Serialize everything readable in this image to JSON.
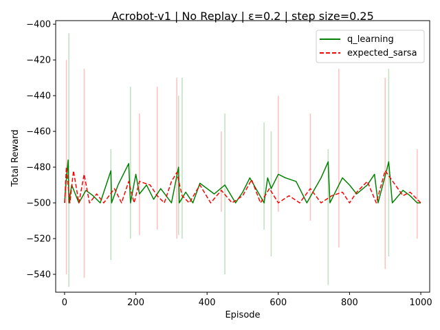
{
  "chart_data": {
    "type": "line",
    "title": "Acrobot-v1 | No Replay | ε=0.2 | step size=0.25",
    "xlabel": "Episode",
    "ylabel": "Total Reward",
    "xlim": [
      -25,
      1025
    ],
    "ylim": [
      -550,
      -398
    ],
    "xticks": [
      0,
      200,
      400,
      600,
      800,
      1000
    ],
    "yticks": [
      -540,
      -520,
      -500,
      -480,
      -460,
      -440,
      -420,
      -400
    ],
    "grid": false,
    "legend_position": "top-right",
    "series": [
      {
        "name": "q_learning",
        "color": "#008000",
        "style": "solid",
        "x": [
          0,
          3,
          10,
          12,
          20,
          30,
          40,
          60,
          80,
          100,
          130,
          132,
          150,
          180,
          185,
          200,
          210,
          230,
          250,
          270,
          300,
          320,
          322,
          340,
          360,
          380,
          420,
          450,
          480,
          500,
          520,
          560,
          570,
          580,
          600,
          620,
          650,
          680,
          700,
          720,
          740,
          745,
          780,
          800,
          820,
          850,
          870,
          880,
          900,
          910,
          920,
          950,
          970,
          990,
          1000
        ],
        "values": [
          -500,
          -491,
          -476,
          -500,
          -490,
          -495,
          -500,
          -493,
          -496,
          -500,
          -482,
          -500,
          -490,
          -478,
          -500,
          -484,
          -495,
          -490,
          -498,
          -492,
          -500,
          -480,
          -500,
          -494,
          -500,
          -489,
          -495,
          -490,
          -500,
          -494,
          -486,
          -500,
          -486,
          -492,
          -484,
          -486,
          -488,
          -500,
          -493,
          -486,
          -477,
          -500,
          -486,
          -490,
          -495,
          -490,
          -484,
          -500,
          -485,
          -477,
          -500,
          -493,
          -496,
          -500,
          -500
        ],
        "band_spikes": [
          {
            "x": 12,
            "y": [
              -547,
              -405
            ]
          },
          {
            "x": 130,
            "y": [
              -532,
              -470
            ]
          },
          {
            "x": 185,
            "y": [
              -520,
              -435
            ]
          },
          {
            "x": 320,
            "y": [
              -518,
              -440
            ]
          },
          {
            "x": 330,
            "y": [
              -520,
              -430
            ]
          },
          {
            "x": 450,
            "y": [
              -540,
              -450
            ]
          },
          {
            "x": 560,
            "y": [
              -515,
              -455
            ]
          },
          {
            "x": 580,
            "y": [
              -530,
              -460
            ]
          },
          {
            "x": 740,
            "y": [
              -546,
              -470
            ]
          },
          {
            "x": 910,
            "y": [
              -530,
              -425
            ]
          }
        ]
      },
      {
        "name": "expected_sarsa",
        "color": "#ff0000",
        "style": "dashed",
        "x": [
          0,
          5,
          15,
          25,
          40,
          55,
          70,
          90,
          110,
          140,
          160,
          180,
          195,
          210,
          240,
          260,
          280,
          300,
          315,
          330,
          350,
          380,
          410,
          440,
          470,
          500,
          525,
          550,
          575,
          600,
          630,
          660,
          690,
          720,
          750,
          780,
          800,
          820,
          850,
          875,
          900,
          925,
          950,
          970,
          1000
        ],
        "values": [
          -500,
          -480,
          -500,
          -482,
          -500,
          -484,
          -500,
          -495,
          -500,
          -492,
          -500,
          -488,
          -500,
          -488,
          -490,
          -496,
          -500,
          -488,
          -483,
          -496,
          -500,
          -490,
          -500,
          -493,
          -500,
          -496,
          -487,
          -500,
          -492,
          -500,
          -496,
          -500,
          -492,
          -500,
          -496,
          -494,
          -500,
          -494,
          -488,
          -500,
          -482,
          -489,
          -496,
          -494,
          -500
        ],
        "band_spikes": [
          {
            "x": 5,
            "y": [
              -540,
              -420
            ]
          },
          {
            "x": 55,
            "y": [
              -542,
              -425
            ]
          },
          {
            "x": 210,
            "y": [
              -518,
              -450
            ]
          },
          {
            "x": 260,
            "y": [
              -515,
              -435
            ]
          },
          {
            "x": 315,
            "y": [
              -520,
              -430
            ]
          },
          {
            "x": 440,
            "y": [
              -505,
              -460
            ]
          },
          {
            "x": 600,
            "y": [
              -505,
              -440
            ]
          },
          {
            "x": 690,
            "y": [
              -510,
              -450
            ]
          },
          {
            "x": 770,
            "y": [
              -525,
              -425
            ]
          },
          {
            "x": 900,
            "y": [
              -537,
              -430
            ]
          },
          {
            "x": 990,
            "y": [
              -520,
              -470
            ]
          }
        ]
      }
    ]
  }
}
